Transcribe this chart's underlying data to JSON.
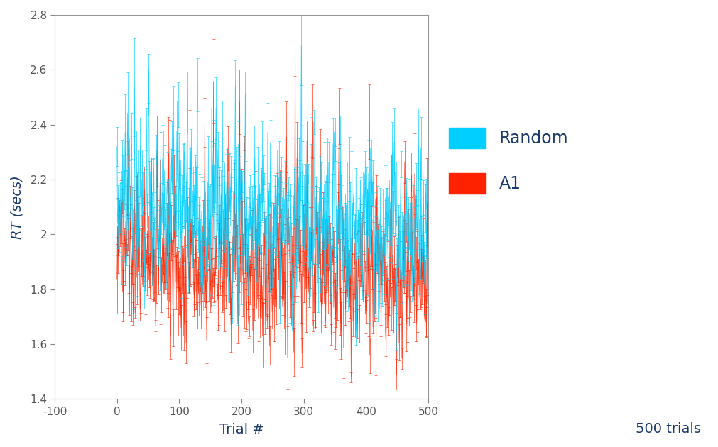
{
  "xlim": [
    -100,
    500
  ],
  "ylim": [
    1.4,
    2.8
  ],
  "xlabel": "Trial #",
  "xlabel2": "500 trials",
  "ylabel": "RT (secs)",
  "ylabel_color": "#1a3a6b",
  "xticks": [
    -100,
    0,
    100,
    200,
    300,
    400,
    500
  ],
  "yticks": [
    1.4,
    1.6,
    1.8,
    2.0,
    2.2,
    2.4,
    2.6,
    2.8
  ],
  "random_color": "#00cfff",
  "a1_color": "#ff2200",
  "random_fill_color": "#00cfff",
  "a1_fill_color": "#ff5533",
  "legend_random": "Random",
  "legend_a1": "A1",
  "legend_color": "#1a3a6b",
  "tick_color": "#555555",
  "n_trials": 500,
  "xlabel_color": "#1a3a6b",
  "xlabel2_color": "#1a3a6b",
  "axis_label_fontsize": 14,
  "legend_fontsize": 17
}
